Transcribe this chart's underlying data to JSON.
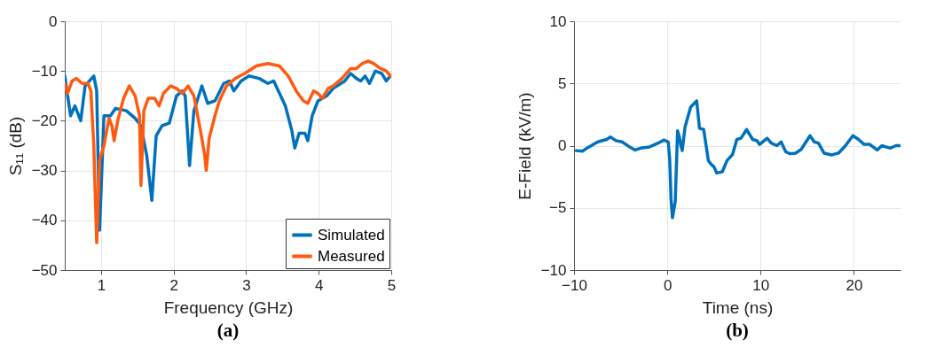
{
  "chart_data": [
    {
      "type": "line",
      "xlabel": "Frequency (GHz)",
      "ylabel": "S₁₁ (dB)",
      "annotations": [
        "(a)"
      ],
      "xlim": [
        0.5,
        5
      ],
      "xticks": [
        1,
        2,
        3,
        4,
        5
      ],
      "ylim": [
        -50,
        0
      ],
      "yticks": [
        -50,
        -40,
        -30,
        -20,
        -10,
        0
      ],
      "grid": true,
      "legend": "bottom right",
      "line_style": "solid",
      "series": [
        {
          "name": "Simulated",
          "color": "#0072bd",
          "x": [
            0.5,
            0.58,
            0.64,
            0.72,
            0.78,
            0.84,
            0.9,
            0.94,
            0.98,
            1.04,
            1.13,
            1.2,
            1.35,
            1.47,
            1.55,
            1.63,
            1.7,
            1.76,
            1.84,
            1.94,
            2.04,
            2.12,
            2.16,
            2.22,
            2.28,
            2.39,
            2.47,
            2.57,
            2.69,
            2.77,
            2.83,
            2.93,
            3.04,
            3.18,
            3.3,
            3.38,
            3.46,
            3.54,
            3.63,
            3.67,
            3.73,
            3.81,
            3.85,
            3.91,
            3.99,
            4.11,
            4.2,
            4.36,
            4.44,
            4.52,
            4.58,
            4.64,
            4.7,
            4.78,
            4.87,
            4.93,
            4.99
          ],
          "values": [
            -11,
            -19,
            -17,
            -20,
            -13,
            -12,
            -11,
            -14,
            -42,
            -19,
            -19,
            -17.5,
            -18,
            -19.5,
            -21,
            -27,
            -36,
            -23,
            -21,
            -20.5,
            -15,
            -14,
            -15,
            -29,
            -18,
            -13,
            -16.5,
            -16,
            -12.5,
            -12,
            -14,
            -12,
            -11,
            -11.5,
            -12.5,
            -12,
            -14.5,
            -17,
            -22,
            -25.5,
            -22.5,
            -22.5,
            -24,
            -19,
            -16,
            -15,
            -13.5,
            -12,
            -10.5,
            -11.5,
            -12,
            -11,
            -12.5,
            -10,
            -10.5,
            -12,
            -11
          ]
        },
        {
          "name": "Measured",
          "color": "#ff5a10",
          "x": [
            0.5,
            0.54,
            0.6,
            0.66,
            0.74,
            0.82,
            0.86,
            0.9,
            0.94,
            0.98,
            1.04,
            1.11,
            1.15,
            1.18,
            1.23,
            1.31,
            1.39,
            1.47,
            1.53,
            1.55,
            1.59,
            1.65,
            1.74,
            1.8,
            1.86,
            1.96,
            2.04,
            2.12,
            2.2,
            2.28,
            2.37,
            2.43,
            2.45,
            2.49,
            2.57,
            2.63,
            2.73,
            2.85,
            2.98,
            3.14,
            3.3,
            3.46,
            3.58,
            3.69,
            3.79,
            3.85,
            3.93,
            3.99,
            4.05,
            4.13,
            4.2,
            4.32,
            4.44,
            4.52,
            4.6,
            4.68,
            4.76,
            4.85,
            4.93,
            4.99
          ],
          "values": [
            -12.5,
            -14.5,
            -12,
            -11.5,
            -12.5,
            -12.5,
            -14,
            -25,
            -44.5,
            -28,
            -25,
            -19.5,
            -21,
            -24,
            -20,
            -15.5,
            -13,
            -15,
            -19,
            -33,
            -18,
            -15.5,
            -15.5,
            -17,
            -14.5,
            -13,
            -13.5,
            -14.5,
            -13,
            -15,
            -22,
            -27,
            -30,
            -23.5,
            -19,
            -16,
            -13,
            -11.5,
            -10.5,
            -9,
            -8.5,
            -9,
            -11,
            -14,
            -16,
            -16.5,
            -14,
            -14.5,
            -15.5,
            -13.5,
            -13,
            -11.5,
            -9.5,
            -9.5,
            -8.5,
            -8,
            -8.5,
            -9.5,
            -10,
            -11
          ]
        }
      ]
    },
    {
      "type": "line",
      "xlabel": "Time (ns)",
      "ylabel": "E-Field (kV/m)",
      "annotations": [
        "(b)"
      ],
      "xlim": [
        -10,
        25
      ],
      "xticks": [
        -10,
        0,
        10,
        20
      ],
      "ylim": [
        -10,
        10
      ],
      "yticks": [
        -10,
        -5,
        0,
        5,
        10
      ],
      "grid": true,
      "line_style": "solid",
      "series": [
        {
          "color": "#0072bd",
          "x": [
            -9.75,
            -9.1,
            -8.4,
            -7.45,
            -6.5,
            -6.1,
            -5.5,
            -4.85,
            -4.05,
            -3.45,
            -2.85,
            -1.9,
            -1.0,
            -0.35,
            0.1,
            0.25,
            0.4,
            0.55,
            0.85,
            1.1,
            1.3,
            1.45,
            1.6,
            1.9,
            2.5,
            3.15,
            3.45,
            3.9,
            4.4,
            4.7,
            5.0,
            5.3,
            5.9,
            6.4,
            7.0,
            7.45,
            7.9,
            8.5,
            9.15,
            9.6,
            9.9,
            10.7,
            11.15,
            11.75,
            12.2,
            12.7,
            13.15,
            13.75,
            14.35,
            15.3,
            15.75,
            16.2,
            16.8,
            17.6,
            18.35,
            19.1,
            19.9,
            20.5,
            21.1,
            21.7,
            22.5,
            23.0,
            23.9,
            24.5,
            25
          ],
          "values": [
            -0.4,
            -0.45,
            -0.1,
            0.3,
            0.5,
            0.7,
            0.4,
            0.3,
            -0.1,
            -0.35,
            -0.2,
            -0.1,
            0.2,
            0.45,
            0.3,
            -1.0,
            -4.3,
            -5.8,
            -4.5,
            1.2,
            0.7,
            0.0,
            -0.4,
            1.5,
            3.1,
            3.6,
            1.4,
            1.3,
            -1.2,
            -1.5,
            -1.7,
            -2.2,
            -2.1,
            -1.2,
            -0.7,
            0.5,
            0.6,
            1.3,
            0.5,
            0.4,
            0.1,
            0.6,
            0.2,
            0.0,
            0.3,
            -0.5,
            -0.65,
            -0.6,
            -0.3,
            0.8,
            0.3,
            0.2,
            -0.6,
            -0.75,
            -0.6,
            0.0,
            0.8,
            0.5,
            0.1,
            0.1,
            -0.35,
            0.0,
            -0.2,
            0.0,
            0.0
          ]
        }
      ]
    }
  ]
}
